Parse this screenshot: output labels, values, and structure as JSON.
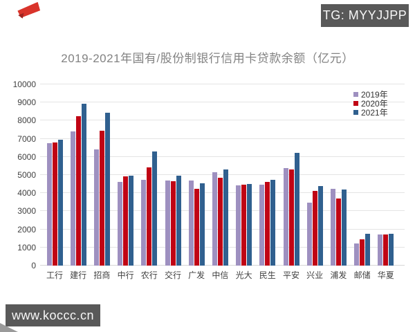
{
  "badges": {
    "tg": "TG: MYYJJPP",
    "site": "www.koccc.cn",
    "bg_color": "#595959",
    "text_color": "#f7f7f7"
  },
  "decorations": {
    "top_left_ribbon_color": "#d9342b",
    "bottom_left_corner_color": "#9a9a9a"
  },
  "chart_data": {
    "type": "bar",
    "title": "2019-2021年国有/股份制银行信用卡贷款余额（亿元）",
    "title_color": "#828282",
    "categories": [
      "工行",
      "建行",
      "招商",
      "中行",
      "农行",
      "交行",
      "广发",
      "中信",
      "光大",
      "民生",
      "平安",
      "兴业",
      "浦发",
      "邮储",
      "华夏"
    ],
    "series": [
      {
        "name": "2019年",
        "color": "#9e90c0",
        "values": [
          6770,
          7410,
          6420,
          4620,
          4750,
          4680,
          4680,
          5140,
          4440,
          4450,
          5400,
          3480,
          4240,
          1230,
          1710
        ]
      },
      {
        "name": "2020年",
        "color": "#c00414",
        "values": [
          6810,
          8260,
          7460,
          4910,
          5420,
          4650,
          4220,
          4860,
          4460,
          4620,
          5290,
          4110,
          3710,
          1440,
          1720
        ]
      },
      {
        "name": "2021年",
        "color": "#30608f",
        "values": [
          6950,
          8950,
          8440,
          4980,
          6290,
          4950,
          4560,
          5290,
          4500,
          4740,
          6210,
          4380,
          4190,
          1770,
          1750
        ]
      }
    ],
    "xlabel": "",
    "ylabel": "",
    "ylim": [
      0,
      10000
    ],
    "ytick_step": 1000,
    "grid": true,
    "gridline_color": "#e4e4e4",
    "legend_position": "top-right",
    "axis_text_color": "#3f3f3f"
  }
}
